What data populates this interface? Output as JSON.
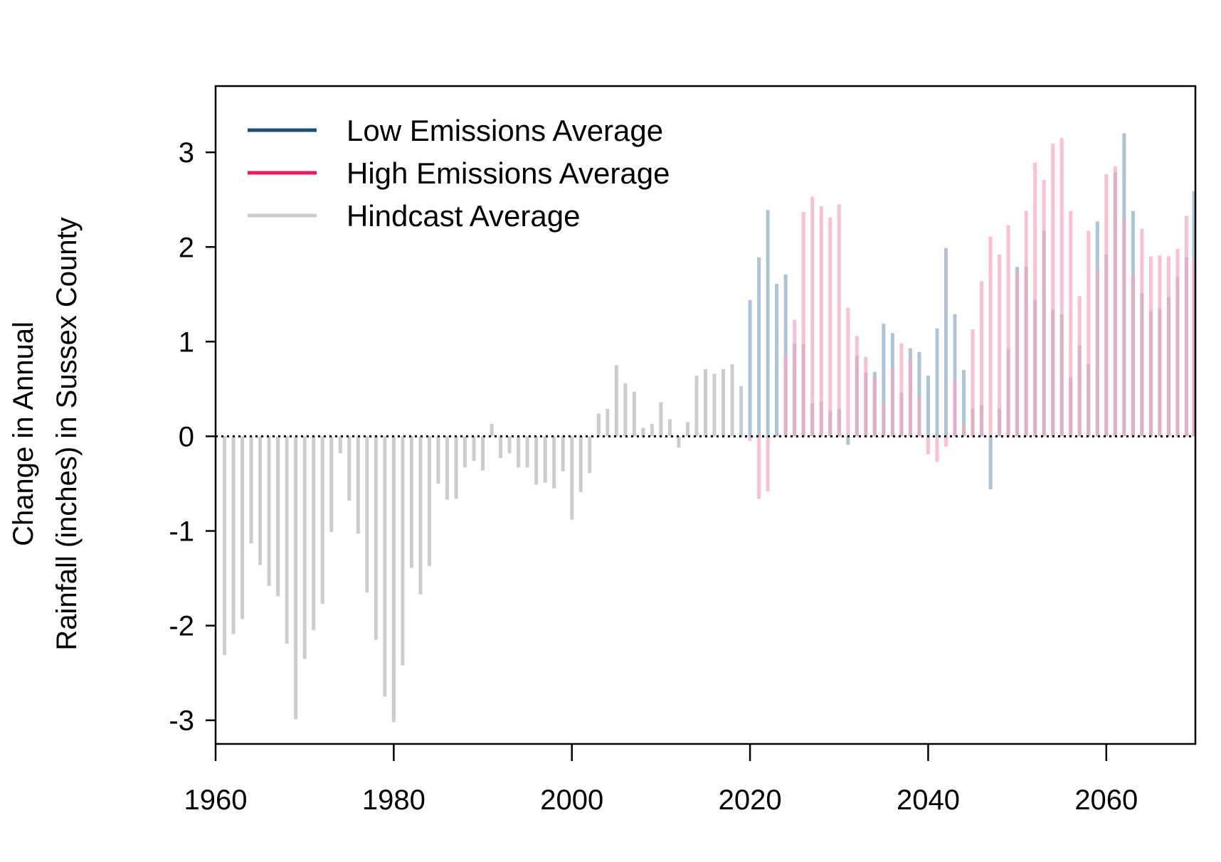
{
  "chart_data": {
    "type": "bar",
    "title": "",
    "xlabel": "",
    "ylabel_lines": [
      "Change in Annual",
      "Rainfall (inches) in Sussex County"
    ],
    "xlim": [
      1960,
      2070
    ],
    "ylim": [
      -3.25,
      3.7
    ],
    "x_ticks": [
      1960,
      1980,
      2000,
      2020,
      2040,
      2060
    ],
    "y_ticks": [
      -3,
      -2,
      -1,
      0,
      1,
      2,
      3
    ],
    "zero_line": "dotted",
    "grid": false,
    "legend_position": "top-left",
    "series": [
      {
        "name": "Low Emissions Average",
        "legend_color": "#1a4f7a",
        "bar_color": "#9fb9cf",
        "x": [
          2020,
          2021,
          2022,
          2023,
          2024,
          2025,
          2026,
          2027,
          2028,
          2029,
          2030,
          2031,
          2032,
          2033,
          2034,
          2035,
          2036,
          2037,
          2038,
          2039,
          2040,
          2041,
          2042,
          2043,
          2044,
          2045,
          2046,
          2047,
          2048,
          2049,
          2050,
          2051,
          2052,
          2053,
          2054,
          2055,
          2056,
          2057,
          2058,
          2059,
          2060,
          2061,
          2062,
          2063,
          2064,
          2065,
          2066,
          2067,
          2068,
          2069,
          2070
        ],
        "values": [
          1.44,
          1.89,
          2.39,
          1.61,
          1.71,
          0.98,
          0.97,
          0.35,
          0.37,
          0.27,
          0.29,
          -0.09,
          0.85,
          0.67,
          0.68,
          1.19,
          1.09,
          0.46,
          0.93,
          0.89,
          0.64,
          1.14,
          1.99,
          1.29,
          0.7,
          0.29,
          0.33,
          -0.56,
          0.29,
          0.92,
          1.79,
          1.79,
          1.44,
          2.17,
          1.34,
          1.29,
          0.62,
          0.96,
          0.76,
          2.27,
          1.92,
          2.79,
          3.2,
          2.38,
          1.51,
          1.32,
          1.35,
          1.47,
          1.68,
          1.89,
          2.59
        ]
      },
      {
        "name": "High Emissions Average",
        "legend_color": "#f0185c",
        "bar_color": "#f8a5bf",
        "x": [
          2020,
          2021,
          2022,
          2023,
          2024,
          2025,
          2026,
          2027,
          2028,
          2029,
          2030,
          2031,
          2032,
          2033,
          2034,
          2035,
          2036,
          2037,
          2038,
          2039,
          2040,
          2041,
          2042,
          2043,
          2044,
          2045,
          2046,
          2047,
          2048,
          2049,
          2050,
          2051,
          2052,
          2053,
          2054,
          2055,
          2056,
          2057,
          2058,
          2059,
          2060,
          2061,
          2062,
          2063,
          2064,
          2065,
          2066,
          2067,
          2068,
          2069,
          2070
        ],
        "values": [
          -0.05,
          -0.66,
          -0.58,
          0.0,
          0.85,
          1.23,
          2.37,
          2.53,
          2.43,
          2.31,
          2.45,
          1.36,
          1.06,
          0.84,
          0.63,
          0.34,
          0.72,
          0.98,
          0.82,
          0.42,
          -0.19,
          -0.27,
          -0.11,
          0.59,
          0.11,
          1.13,
          1.64,
          2.11,
          1.92,
          2.23,
          1.73,
          2.38,
          2.89,
          2.71,
          3.09,
          3.15,
          2.38,
          1.48,
          2.17,
          1.76,
          2.77,
          2.85,
          2.29,
          1.71,
          2.19,
          1.9,
          1.91,
          1.9,
          1.98,
          2.33,
          1.88
        ]
      },
      {
        "name": "Hindcast Average",
        "legend_color": "#cccccc",
        "bar_color": "#cccccc",
        "x": [
          1961,
          1962,
          1963,
          1964,
          1965,
          1966,
          1967,
          1968,
          1969,
          1970,
          1971,
          1972,
          1973,
          1974,
          1975,
          1976,
          1977,
          1978,
          1979,
          1980,
          1981,
          1982,
          1983,
          1984,
          1985,
          1986,
          1987,
          1988,
          1989,
          1990,
          1991,
          1992,
          1993,
          1994,
          1995,
          1996,
          1997,
          1998,
          1999,
          2000,
          2001,
          2002,
          2003,
          2004,
          2005,
          2006,
          2007,
          2008,
          2009,
          2010,
          2011,
          2012,
          2013,
          2014,
          2015,
          2016,
          2017,
          2018,
          2019
        ],
        "values": [
          -2.31,
          -2.09,
          -1.93,
          -1.13,
          -1.36,
          -1.58,
          -1.69,
          -2.19,
          -2.99,
          -2.35,
          -2.05,
          -1.77,
          -1.01,
          -0.18,
          -0.68,
          -1.03,
          -1.65,
          -2.15,
          -2.75,
          -3.02,
          -2.42,
          -1.39,
          -1.67,
          -1.37,
          -0.5,
          -0.67,
          -0.66,
          -0.33,
          -0.26,
          -0.36,
          0.13,
          -0.23,
          -0.18,
          -0.33,
          -0.33,
          -0.51,
          -0.49,
          -0.55,
          -0.37,
          -0.88,
          -0.59,
          -0.39,
          0.24,
          0.29,
          0.75,
          0.56,
          0.47,
          0.09,
          0.13,
          0.36,
          0.18,
          -0.12,
          0.15,
          0.64,
          0.71,
          0.66,
          0.71,
          0.76,
          0.53
        ]
      }
    ]
  }
}
